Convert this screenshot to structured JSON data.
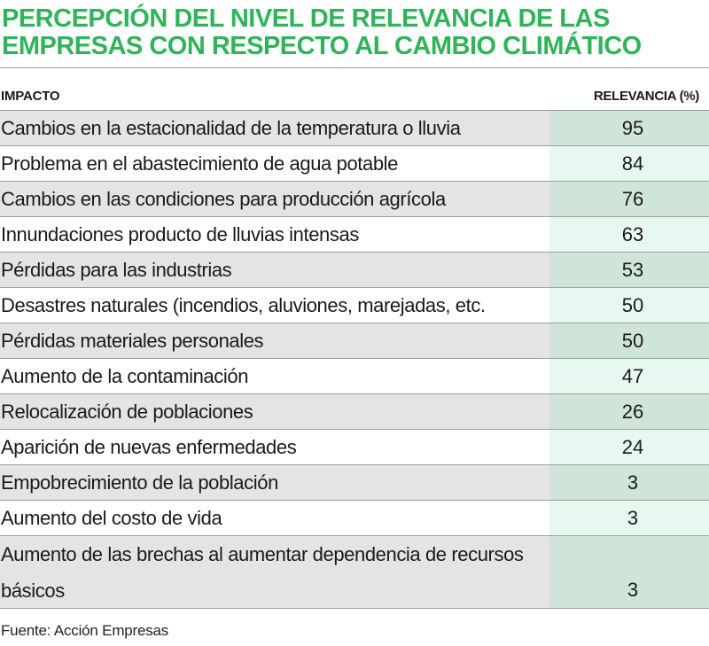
{
  "title": {
    "line1": "PERCEPCIÓN DEL NIVEL DE RELEVANCIA DE LAS",
    "line2": "EMPRESAS CON RESPECTO AL CAMBIO CLIMÁTICO"
  },
  "colors": {
    "title": "#2fb45a",
    "row_band_gray": "#e4e4e4",
    "value_band_dark": "#cfe5d9",
    "value_band_light": "#e6f8f0"
  },
  "chart_data": {
    "type": "table",
    "title": "PERCEPCIÓN DEL NIVEL DE RELEVANCIA DE LAS EMPRESAS CON RESPECTO AL CAMBIO CLIMÁTICO",
    "columns": [
      "IMPACTO",
      "RELEVANCIA (%)"
    ],
    "rows": [
      {
        "impacto": "Cambios en la estacionalidad de la temperatura o lluvia",
        "relevancia": 95
      },
      {
        "impacto": "Problema en el abastecimiento de agua potable",
        "relevancia": 84
      },
      {
        "impacto": "Cambios en las condiciones para producción agrícola",
        "relevancia": 76
      },
      {
        "impacto": "Innundaciones producto de lluvias intensas",
        "relevancia": 63
      },
      {
        "impacto": "Pérdidas para las industrias",
        "relevancia": 53
      },
      {
        "impacto": "Desastres naturales (incendios, aluviones, marejadas, etc.",
        "relevancia": 50
      },
      {
        "impacto": "Pérdidas materiales personales",
        "relevancia": 50
      },
      {
        "impacto": "Aumento de la contaminación",
        "relevancia": 47
      },
      {
        "impacto": "Relocalización de poblaciones",
        "relevancia": 26
      },
      {
        "impacto": "Aparición de nuevas enfermedades",
        "relevancia": 24
      },
      {
        "impacto": "Empobrecimiento de la población",
        "relevancia": 3
      },
      {
        "impacto": "Aumento del costo de vida",
        "relevancia": 3
      },
      {
        "impacto": "Aumento de las brechas al aumentar dependencia de recursos básicos",
        "relevancia": 3
      }
    ],
    "source": "Fuente: Acción Empresas"
  }
}
